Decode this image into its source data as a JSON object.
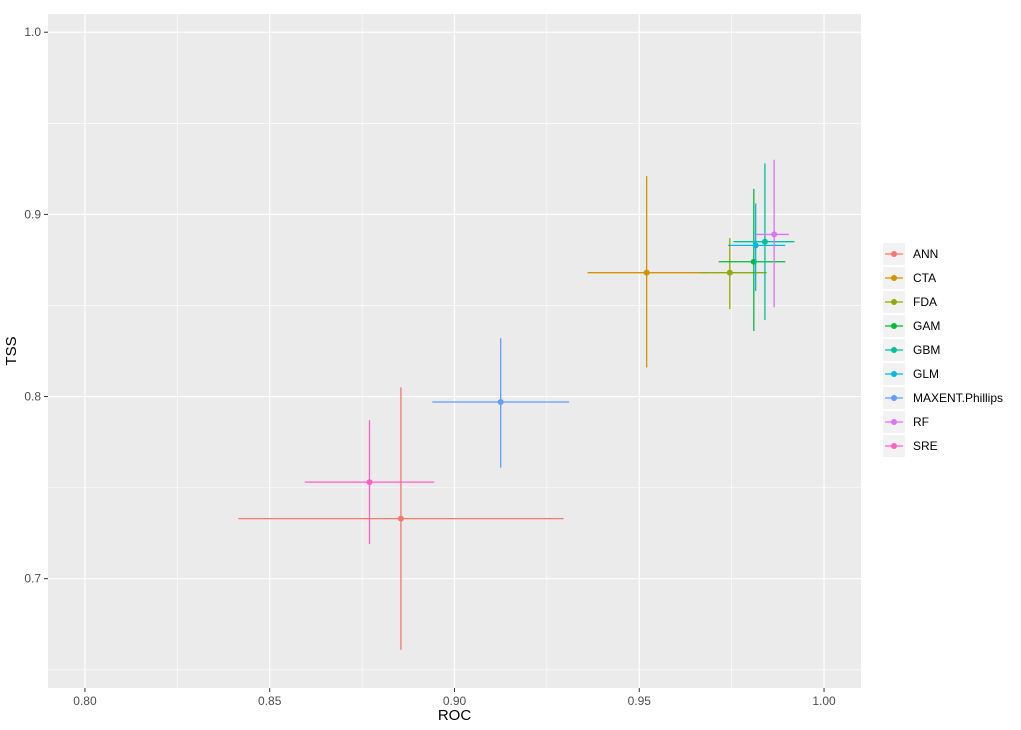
{
  "chart_data": {
    "type": "scatter",
    "title": "",
    "xlabel": "ROC",
    "ylabel": "TSS",
    "xlim": [
      0.79,
      1.01
    ],
    "ylim": [
      0.64,
      1.01
    ],
    "x_ticks": [
      0.8,
      0.85,
      0.9,
      0.95,
      1.0
    ],
    "x_tick_labels": [
      "0.80",
      "0.85",
      "0.90",
      "0.95",
      "1.00"
    ],
    "y_ticks": [
      0.7,
      0.8,
      0.9,
      1.0
    ],
    "y_tick_labels": [
      "0.7",
      "0.8",
      "0.9",
      "1.0"
    ],
    "grid": true,
    "legend_position": "right",
    "series": [
      {
        "name": "ANN",
        "color": "#F8766D",
        "x": 0.8855,
        "y": 0.733,
        "x_err": [
          0.8415,
          0.9295
        ],
        "y_err": [
          0.661,
          0.805
        ]
      },
      {
        "name": "CTA",
        "color": "#D39200",
        "x": 0.952,
        "y": 0.868,
        "x_err": [
          0.936,
          0.9685
        ],
        "y_err": [
          0.816,
          0.921
        ]
      },
      {
        "name": "FDA",
        "color": "#93AA00",
        "x": 0.9745,
        "y": 0.868,
        "x_err": [
          0.9665,
          0.9845
        ],
        "y_err": [
          0.848,
          0.887
        ]
      },
      {
        "name": "GAM",
        "color": "#00BA38",
        "x": 0.981,
        "y": 0.874,
        "x_err": [
          0.9715,
          0.9895
        ],
        "y_err": [
          0.836,
          0.914
        ]
      },
      {
        "name": "GBM",
        "color": "#00C19F",
        "x": 0.984,
        "y": 0.885,
        "x_err": [
          0.9755,
          0.992
        ],
        "y_err": [
          0.842,
          0.928
        ]
      },
      {
        "name": "GLM",
        "color": "#00B9E3",
        "x": 0.9815,
        "y": 0.883,
        "x_err": [
          0.974,
          0.9895
        ],
        "y_err": [
          0.858,
          0.906
        ]
      },
      {
        "name": "MAXENT.Phillips",
        "color": "#619CFF",
        "x": 0.9125,
        "y": 0.797,
        "x_err": [
          0.894,
          0.931
        ],
        "y_err": [
          0.761,
          0.832
        ]
      },
      {
        "name": "RF",
        "color": "#DB72FB",
        "x": 0.9865,
        "y": 0.889,
        "x_err": [
          0.9815,
          0.9905
        ],
        "y_err": [
          0.849,
          0.93
        ]
      },
      {
        "name": "SRE",
        "color": "#FF61C3",
        "x": 0.877,
        "y": 0.753,
        "x_err": [
          0.8595,
          0.8945
        ],
        "y_err": [
          0.719,
          0.787
        ]
      }
    ]
  }
}
